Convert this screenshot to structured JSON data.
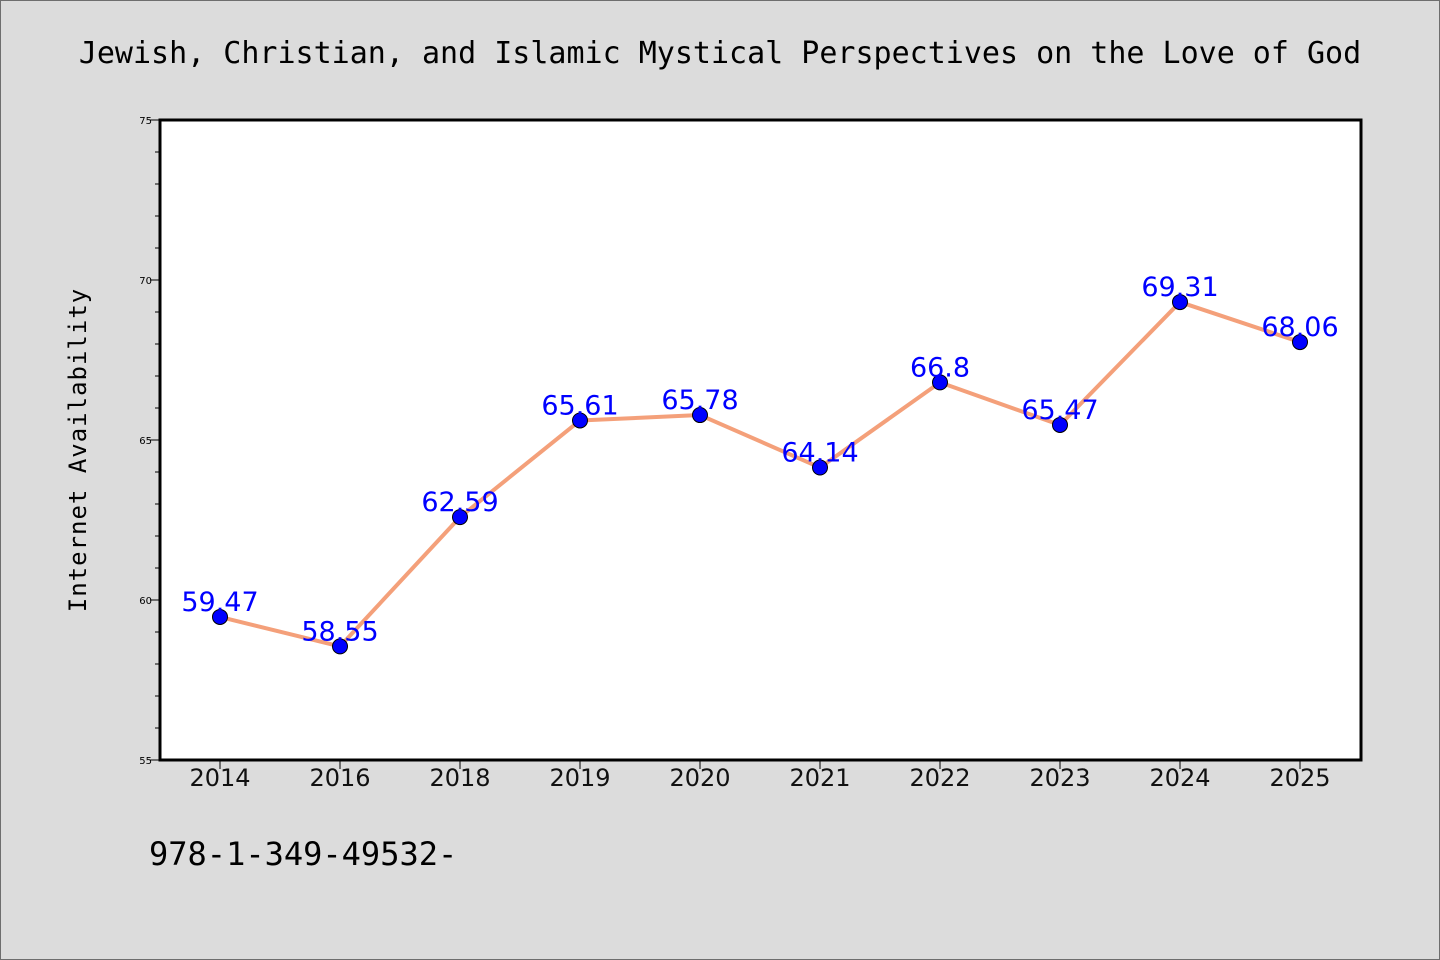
{
  "chart_data": {
    "type": "line",
    "title": "Jewish, Christian, and Islamic Mystical Perspectives on the Love of God",
    "xlabel": "",
    "ylabel": "Internet Availability",
    "categories": [
      "2014",
      "2016",
      "2018",
      "2019",
      "2020",
      "2021",
      "2022",
      "2023",
      "2024",
      "2025"
    ],
    "series": [
      {
        "values": [
          59.47,
          58.55,
          62.59,
          65.61,
          65.78,
          64.14,
          66.8,
          65.47,
          69.31,
          68.06
        ],
        "labels": [
          "59.47",
          "58.55",
          "62.59",
          "65.61",
          "65.78",
          "64.14",
          "66.8",
          "65.47",
          "69.31",
          "68.06"
        ],
        "line_color": "#f4a07a",
        "marker_color": "#0000ff",
        "label_color": "#0000ff"
      }
    ],
    "ylim": [
      55,
      75
    ],
    "yticks": [
      "55",
      "60",
      "65",
      "70",
      "75"
    ],
    "grid": false,
    "legend": "none"
  },
  "footer_text": "978-1-349-49532-"
}
